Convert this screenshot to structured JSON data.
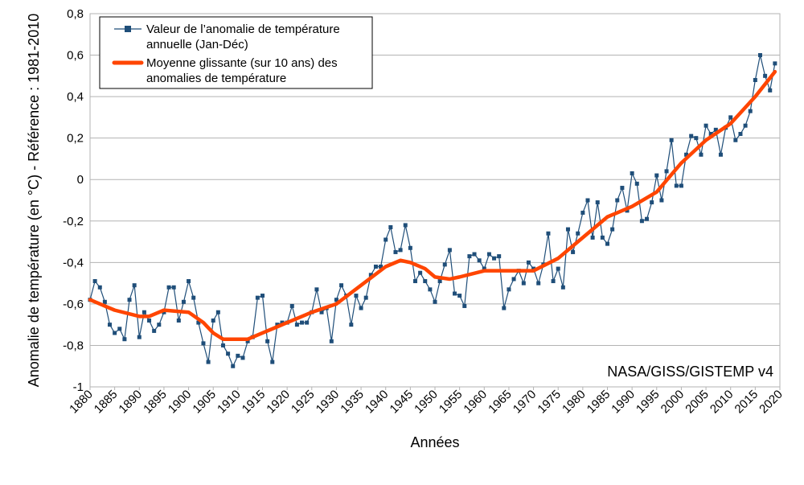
{
  "chart_data": {
    "type": "line",
    "xlabel": "Années",
    "ylabel": "Anomalie de température (en °C)  - Référence : 1981-2010",
    "source": "NASA/GISS/GISTEMP v4",
    "xlim": [
      1880,
      2020
    ],
    "ylim": [
      -1,
      0.8
    ],
    "x_ticks": [
      "1880",
      "1885",
      "1890",
      "1895",
      "1900",
      "1905",
      "1910",
      "1915",
      "1920",
      "1925",
      "1930",
      "1935",
      "1940",
      "1945",
      "1950",
      "1955",
      "1960",
      "1965",
      "1970",
      "1975",
      "1980",
      "1985",
      "1990",
      "1995",
      "2000",
      "2005",
      "2010",
      "2015",
      "2020"
    ],
    "y_ticks": [
      "0,8",
      "0,6",
      "0,4",
      "0,2",
      "0",
      "-0,2",
      "-0,4",
      "-0,6",
      "-0,8",
      "-1"
    ],
    "y_tick_values": [
      0.8,
      0.6,
      0.4,
      0.2,
      0,
      -0.2,
      -0.4,
      -0.6,
      -0.8,
      -1
    ],
    "grid": "horizontal",
    "legend_position": "top-left",
    "series": [
      {
        "name": "Valeur de l'anomalie de température annuelle (Jan-Déc)",
        "legend_lines": [
          "Valeur de l’anomalie de température",
          "annuelle (Jan-Déc)"
        ],
        "color": "#1f4e79",
        "marker": "square",
        "x": [
          1880,
          1881,
          1882,
          1883,
          1884,
          1885,
          1886,
          1887,
          1888,
          1889,
          1890,
          1891,
          1892,
          1893,
          1894,
          1895,
          1896,
          1897,
          1898,
          1899,
          1900,
          1901,
          1902,
          1903,
          1904,
          1905,
          1906,
          1907,
          1908,
          1909,
          1910,
          1911,
          1912,
          1913,
          1914,
          1915,
          1916,
          1917,
          1918,
          1919,
          1920,
          1921,
          1922,
          1923,
          1924,
          1925,
          1926,
          1927,
          1928,
          1929,
          1930,
          1931,
          1932,
          1933,
          1934,
          1935,
          1936,
          1937,
          1938,
          1939,
          1940,
          1941,
          1942,
          1943,
          1944,
          1945,
          1946,
          1947,
          1948,
          1949,
          1950,
          1951,
          1952,
          1953,
          1954,
          1955,
          1956,
          1957,
          1958,
          1959,
          1960,
          1961,
          1962,
          1963,
          1964,
          1965,
          1966,
          1967,
          1968,
          1969,
          1970,
          1971,
          1972,
          1973,
          1974,
          1975,
          1976,
          1977,
          1978,
          1979,
          1980,
          1981,
          1982,
          1983,
          1984,
          1985,
          1986,
          1987,
          1988,
          1989,
          1990,
          1991,
          1992,
          1993,
          1994,
          1995,
          1996,
          1997,
          1998,
          1999,
          2000,
          2001,
          2002,
          2003,
          2004,
          2005,
          2006,
          2007,
          2008,
          2009,
          2010,
          2011,
          2012,
          2013,
          2014,
          2015,
          2016,
          2017,
          2018,
          2019
        ],
        "values": [
          -0.58,
          -0.49,
          -0.52,
          -0.59,
          -0.7,
          -0.74,
          -0.72,
          -0.77,
          -0.58,
          -0.51,
          -0.76,
          -0.64,
          -0.68,
          -0.73,
          -0.7,
          -0.64,
          -0.52,
          -0.52,
          -0.68,
          -0.59,
          -0.49,
          -0.57,
          -0.69,
          -0.79,
          -0.88,
          -0.68,
          -0.64,
          -0.8,
          -0.84,
          -0.9,
          -0.85,
          -0.86,
          -0.78,
          -0.76,
          -0.57,
          -0.56,
          -0.78,
          -0.88,
          -0.7,
          -0.69,
          -0.69,
          -0.61,
          -0.7,
          -0.69,
          -0.69,
          -0.64,
          -0.53,
          -0.64,
          -0.62,
          -0.78,
          -0.58,
          -0.51,
          -0.56,
          -0.7,
          -0.56,
          -0.62,
          -0.57,
          -0.46,
          -0.42,
          -0.42,
          -0.29,
          -0.23,
          -0.35,
          -0.34,
          -0.22,
          -0.33,
          -0.49,
          -0.45,
          -0.49,
          -0.53,
          -0.59,
          -0.49,
          -0.41,
          -0.34,
          -0.55,
          -0.56,
          -0.61,
          -0.37,
          -0.36,
          -0.39,
          -0.43,
          -0.36,
          -0.38,
          -0.37,
          -0.62,
          -0.53,
          -0.48,
          -0.44,
          -0.5,
          -0.4,
          -0.43,
          -0.5,
          -0.41,
          -0.26,
          -0.49,
          -0.43,
          -0.52,
          -0.24,
          -0.35,
          -0.26,
          -0.16,
          -0.1,
          -0.28,
          -0.11,
          -0.28,
          -0.31,
          -0.24,
          -0.1,
          -0.04,
          -0.15,
          0.03,
          -0.02,
          -0.2,
          -0.19,
          -0.11,
          0.02,
          -0.1,
          0.04,
          0.19,
          -0.03,
          -0.03,
          0.12,
          0.21,
          0.2,
          0.12,
          0.26,
          0.22,
          0.24,
          0.12,
          0.25,
          0.3,
          0.19,
          0.22,
          0.26,
          0.33,
          0.48,
          0.6,
          0.5,
          0.43,
          0.56
        ]
      },
      {
        "name": "Moyenne glissante (sur 10 ans) des anomalies de température",
        "legend_lines": [
          "Moyenne glissante (sur 10 ans) des",
          "anomalies de température"
        ],
        "color": "#ff4500",
        "x": [
          1880,
          1885,
          1890,
          1892,
          1895,
          1900,
          1903,
          1905,
          1907,
          1909,
          1912,
          1915,
          1918,
          1920,
          1925,
          1930,
          1935,
          1940,
          1943,
          1945,
          1948,
          1950,
          1953,
          1955,
          1960,
          1965,
          1970,
          1975,
          1980,
          1985,
          1990,
          1995,
          2000,
          2005,
          2010,
          2015,
          2019
        ],
        "values": [
          -0.58,
          -0.63,
          -0.66,
          -0.66,
          -0.63,
          -0.64,
          -0.69,
          -0.74,
          -0.77,
          -0.77,
          -0.77,
          -0.74,
          -0.71,
          -0.69,
          -0.64,
          -0.6,
          -0.51,
          -0.42,
          -0.39,
          -0.4,
          -0.43,
          -0.47,
          -0.48,
          -0.47,
          -0.44,
          -0.44,
          -0.44,
          -0.38,
          -0.28,
          -0.18,
          -0.13,
          -0.06,
          0.08,
          0.19,
          0.27,
          0.4,
          0.52
        ]
      }
    ]
  }
}
